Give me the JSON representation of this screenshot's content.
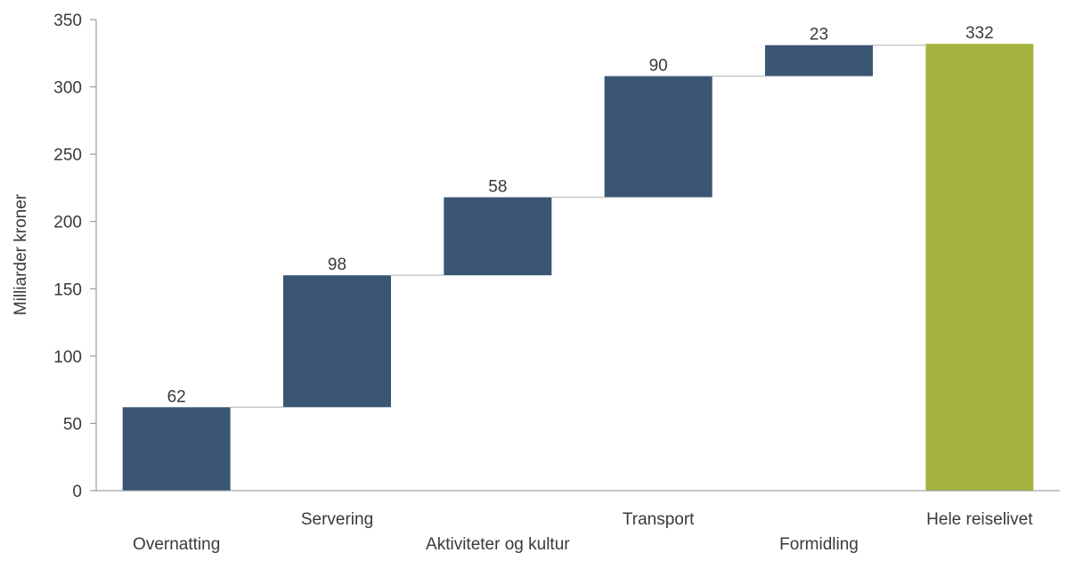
{
  "chart_data": {
    "type": "bar",
    "subtype": "waterfall",
    "ylabel": "Milliarder kroner",
    "xlabel": "",
    "ylim": [
      0,
      350
    ],
    "yticks": [
      0,
      50,
      100,
      150,
      200,
      250,
      300,
      350
    ],
    "grid": false,
    "legend": "none",
    "categories": [
      "Overnatting",
      "Servering",
      "Aktiviteter og kultur",
      "Transport",
      "Formidling",
      "Hele reiselivet"
    ],
    "values": [
      62,
      98,
      58,
      90,
      23,
      332
    ],
    "bar_kinds": [
      "increment",
      "increment",
      "increment",
      "increment",
      "increment",
      "total"
    ],
    "data_labels": [
      "62",
      "98",
      "58",
      "90",
      "23",
      "332"
    ],
    "colors": {
      "increment": "#3b5674",
      "total": "#a6b43f",
      "connector": "#c8c8c8",
      "axis": "#8c8c8c",
      "text": "#3a3a3a"
    }
  }
}
